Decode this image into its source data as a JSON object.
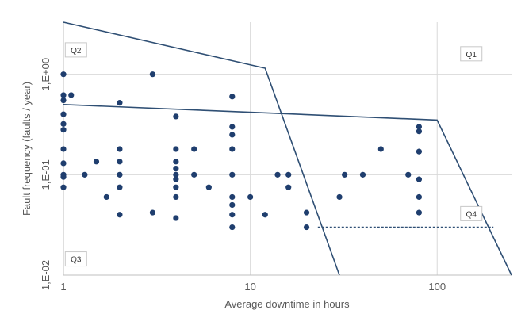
{
  "chart_data": {
    "type": "scatter",
    "title": "",
    "xlabel": "Average downtime in hours",
    "ylabel": "Fault frequency  (faults / year)",
    "x_scale": "log",
    "y_scale": "log",
    "xlim": [
      1,
      250
    ],
    "ylim": [
      0.01,
      3.3
    ],
    "x_ticks": [
      {
        "value": 1,
        "label": "1"
      },
      {
        "value": 10,
        "label": "10"
      },
      {
        "value": 100,
        "label": "100"
      }
    ],
    "y_ticks": [
      {
        "value": 0.01,
        "label": "1,E-02"
      },
      {
        "value": 0.1,
        "label": "1,E-01"
      },
      {
        "value": 1,
        "label": "1,E+00"
      }
    ],
    "grid": true,
    "series": [
      {
        "values": [
          {
            "x": 1,
            "y": 1.0
          },
          {
            "x": 1,
            "y": 0.62
          },
          {
            "x": 1,
            "y": 0.55
          },
          {
            "x": 1,
            "y": 0.4
          },
          {
            "x": 1,
            "y": 0.32
          },
          {
            "x": 1,
            "y": 0.28
          },
          {
            "x": 1,
            "y": 0.18
          },
          {
            "x": 1,
            "y": 0.13
          },
          {
            "x": 1,
            "y": 0.1
          },
          {
            "x": 1,
            "y": 0.095
          },
          {
            "x": 1,
            "y": 0.075
          },
          {
            "x": 1.1,
            "y": 0.62
          },
          {
            "x": 1.3,
            "y": 0.1
          },
          {
            "x": 1.5,
            "y": 0.135
          },
          {
            "x": 1.7,
            "y": 0.06
          },
          {
            "x": 2,
            "y": 0.52
          },
          {
            "x": 2,
            "y": 0.18
          },
          {
            "x": 2,
            "y": 0.135
          },
          {
            "x": 2,
            "y": 0.1
          },
          {
            "x": 2,
            "y": 0.075
          },
          {
            "x": 2,
            "y": 0.04
          },
          {
            "x": 3,
            "y": 1.0
          },
          {
            "x": 3,
            "y": 0.042
          },
          {
            "x": 4,
            "y": 0.38
          },
          {
            "x": 4,
            "y": 0.18
          },
          {
            "x": 4,
            "y": 0.135
          },
          {
            "x": 4,
            "y": 0.115
          },
          {
            "x": 4,
            "y": 0.1
          },
          {
            "x": 4,
            "y": 0.09
          },
          {
            "x": 4,
            "y": 0.075
          },
          {
            "x": 4,
            "y": 0.06
          },
          {
            "x": 4,
            "y": 0.037
          },
          {
            "x": 5,
            "y": 0.18
          },
          {
            "x": 5,
            "y": 0.1
          },
          {
            "x": 6,
            "y": 0.075
          },
          {
            "x": 8,
            "y": 0.6
          },
          {
            "x": 8,
            "y": 0.3
          },
          {
            "x": 8,
            "y": 0.25
          },
          {
            "x": 8,
            "y": 0.18
          },
          {
            "x": 8,
            "y": 0.1
          },
          {
            "x": 8,
            "y": 0.06
          },
          {
            "x": 8,
            "y": 0.05
          },
          {
            "x": 8,
            "y": 0.04
          },
          {
            "x": 8,
            "y": 0.03
          },
          {
            "x": 10,
            "y": 0.06
          },
          {
            "x": 12,
            "y": 0.04
          },
          {
            "x": 14,
            "y": 0.1
          },
          {
            "x": 16,
            "y": 0.1
          },
          {
            "x": 16,
            "y": 0.075
          },
          {
            "x": 20,
            "y": 0.042
          },
          {
            "x": 20,
            "y": 0.03
          },
          {
            "x": 30,
            "y": 0.06
          },
          {
            "x": 32,
            "y": 0.1
          },
          {
            "x": 40,
            "y": 0.1
          },
          {
            "x": 50,
            "y": 0.18
          },
          {
            "x": 70,
            "y": 0.1
          },
          {
            "x": 80,
            "y": 0.3
          },
          {
            "x": 80,
            "y": 0.27
          },
          {
            "x": 80,
            "y": 0.17
          },
          {
            "x": 80,
            "y": 0.09
          },
          {
            "x": 80,
            "y": 0.06
          },
          {
            "x": 80,
            "y": 0.042
          }
        ],
        "color": "#1f3e6e"
      }
    ],
    "boundaries": [
      {
        "style": "solid",
        "points": [
          [
            1,
            3.3
          ],
          [
            12,
            1.15
          ],
          [
            30,
            0.01
          ]
        ]
      },
      {
        "style": "solid",
        "points": [
          [
            1,
            0.5
          ],
          [
            100,
            0.35
          ],
          [
            250,
            0.01
          ]
        ]
      },
      {
        "style": "dashed",
        "points": [
          [
            23,
            0.03
          ],
          [
            200,
            0.03
          ]
        ]
      }
    ],
    "quadrants": [
      {
        "label": "Q1",
        "x": 150,
        "y": 1.6
      },
      {
        "label": "Q2",
        "x": 1.15,
        "y": 1.75
      },
      {
        "label": "Q3",
        "x": 1.15,
        "y": 0.0145
      },
      {
        "label": "Q4",
        "x": 150,
        "y": 0.041
      }
    ],
    "colors": {
      "markers": "#1f3e6e",
      "lines": "#2f4f74",
      "grid": "#d9d9d9"
    }
  }
}
